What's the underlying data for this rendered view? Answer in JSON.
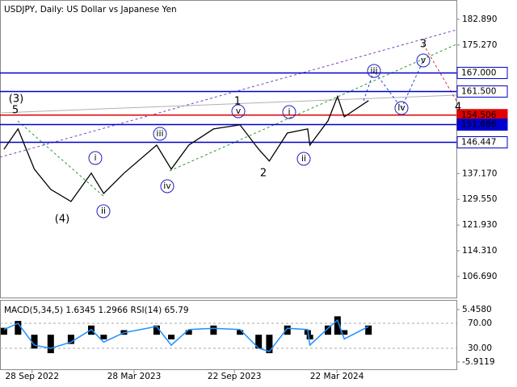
{
  "chart_data": [
    {
      "type": "line",
      "title": "USDJPY, Daily:  US Dollar vs Japanese Yen",
      "x": [
        "2022-08-09",
        "2022-09-03",
        "2022-10-02",
        "2022-10-31",
        "2022-12-06",
        "2023-01-11",
        "2023-02-02",
        "2023-03-10",
        "2023-05-07",
        "2023-06-02",
        "2023-07-03",
        "2023-08-16",
        "2023-10-02",
        "2023-11-04",
        "2023-11-23",
        "2023-12-25",
        "2024-01-30",
        "2024-02-03",
        "2024-03-06",
        "2024-03-23",
        "2024-04-04",
        "2024-05-17"
      ],
      "values": [
        144.4,
        150.4,
        138.5,
        132.5,
        128.9,
        137.3,
        131.3,
        137.3,
        145.6,
        138.5,
        145.6,
        150.4,
        151.6,
        144.4,
        140.9,
        149.2,
        150.4,
        145.6,
        152.8,
        160.0,
        154.0,
        158.8
      ],
      "color": "#000000",
      "xlim": [
        "2022-08-02",
        "2024-10-20"
      ],
      "xticks": [
        {
          "value": "2022-09-28",
          "label": "28 Sep 2022"
        },
        {
          "value": "2023-03-28",
          "label": "28 Mar 2023"
        },
        {
          "value": "2023-09-22",
          "label": "22 Sep 2023"
        },
        {
          "value": "2024-03-22",
          "label": "22 Mar 2024"
        }
      ],
      "ylim": [
        103.8,
        186.7
      ],
      "yticks": [
        {
          "value": 182.89,
          "label": "182.890"
        },
        {
          "value": 175.27,
          "label": "175.270"
        },
        {
          "value": 137.17,
          "label": "137.170"
        },
        {
          "value": 129.55,
          "label": "129.550"
        },
        {
          "value": 121.93,
          "label": "121.930"
        },
        {
          "value": 114.31,
          "label": "114.310"
        },
        {
          "value": 106.69,
          "label": "106.690"
        }
      ],
      "levels": [
        {
          "value": 167,
          "label": "167.000",
          "color": "#0000cc"
        },
        {
          "value": 161.5,
          "label": "161.500",
          "color": "#0000cc"
        },
        {
          "value": 154.506,
          "label": "154.506",
          "color": "#e00000"
        },
        {
          "value": 151.686,
          "label": "151.686",
          "color": "#0000cc"
        },
        {
          "value": 146.447,
          "label": "146.447",
          "color": "#0000cc"
        }
      ],
      "annotations": [
        {
          "text": "(3)",
          "color": "#1a8a1a"
        },
        {
          "text": "5",
          "color": "#c03030"
        },
        {
          "text": "i",
          "color": "#2020c0"
        },
        {
          "text": "ii",
          "color": "#2020c0"
        },
        {
          "text": "iii",
          "color": "#2020c0"
        },
        {
          "text": "iv",
          "color": "#2020c0"
        },
        {
          "text": "(4)",
          "color": "#1a8a1a"
        },
        {
          "text": "1",
          "color": "#c03030"
        },
        {
          "text": "v",
          "color": "#2020c0"
        },
        {
          "text": "2",
          "color": "#c03030"
        },
        {
          "text": "i",
          "color": "#2020c0"
        },
        {
          "text": "ii",
          "color": "#2020c0"
        },
        {
          "text": "iii",
          "color": "#2020c0"
        },
        {
          "text": "iv",
          "color": "#2020c0"
        },
        {
          "text": "v",
          "color": "#2020c0"
        },
        {
          "text": "3",
          "color": "#c03030"
        },
        {
          "text": "4",
          "color": "#c03030"
        }
      ]
    },
    {
      "type": "macd",
      "title": "MACD(5,34,5) 1.6345 1.2966 RSI(14) 65.79",
      "values": [
        1.5,
        3,
        -3,
        -4,
        -2,
        2,
        -1,
        1,
        2,
        -1,
        1,
        2,
        1,
        -3,
        -4,
        2,
        1,
        -1,
        2,
        4,
        1,
        2
      ],
      "rsi": [
        60,
        70,
        35,
        30,
        40,
        60,
        40,
        55,
        65,
        35,
        60,
        62,
        60,
        30,
        25,
        62,
        60,
        35,
        62,
        75,
        45,
        65
      ],
      "color": "#000000",
      "rsi_color": "#1e90ff",
      "ylim": [
        -7.49,
        7.03
      ],
      "yticks": [
        {
          "value": 5.458,
          "label": "5.4580"
        },
        {
          "value": -5.9119,
          "label": "-5.9119"
        }
      ],
      "y2lim": [
        -3.5,
        103.5
      ],
      "y2ticks": [
        {
          "value": 70,
          "label": "70.00"
        },
        {
          "value": 30,
          "label": "30.00"
        }
      ]
    }
  ]
}
